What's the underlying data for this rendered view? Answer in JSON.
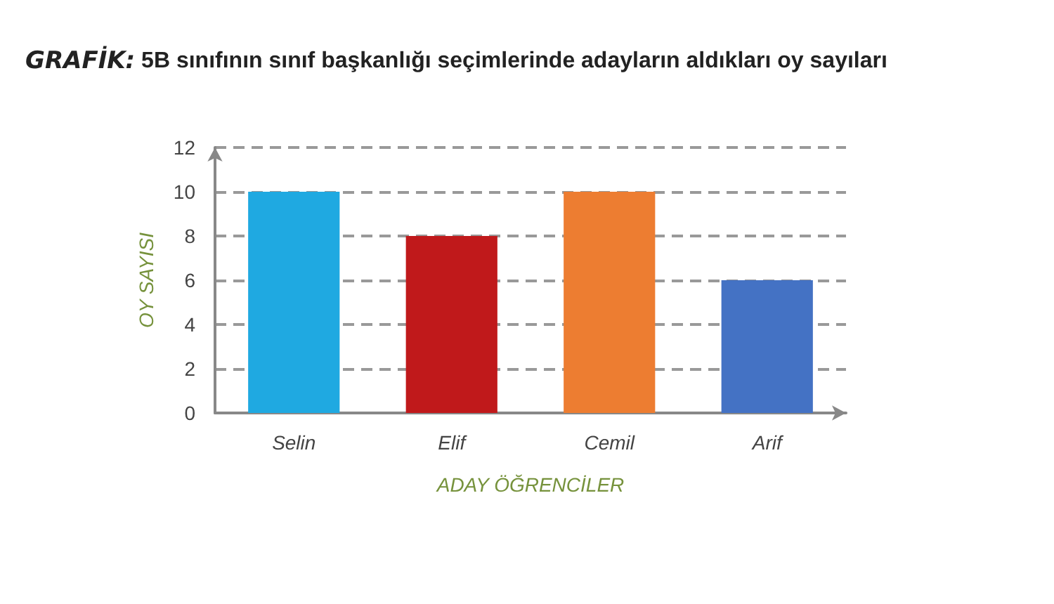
{
  "chart_data": {
    "type": "bar",
    "title": "GRAFİK: 5B sınıfının sınıf başkanlığı seçimlerinde adayların aldıkları oy sayıları",
    "xlabel": "ADAY ÖĞRENCİLER",
    "ylabel": "OY SAYISI",
    "categories": [
      "Selin",
      "Elif",
      "Cemil",
      "Arif"
    ],
    "values": [
      10,
      8,
      10,
      6
    ],
    "colors": [
      "#1fa9e1",
      "#c0191b",
      "#ed7d31",
      "#4472c4"
    ],
    "ylim": [
      0,
      12
    ],
    "yticks": [
      0,
      2,
      4,
      6,
      8,
      10,
      12
    ],
    "grid": "y"
  }
}
